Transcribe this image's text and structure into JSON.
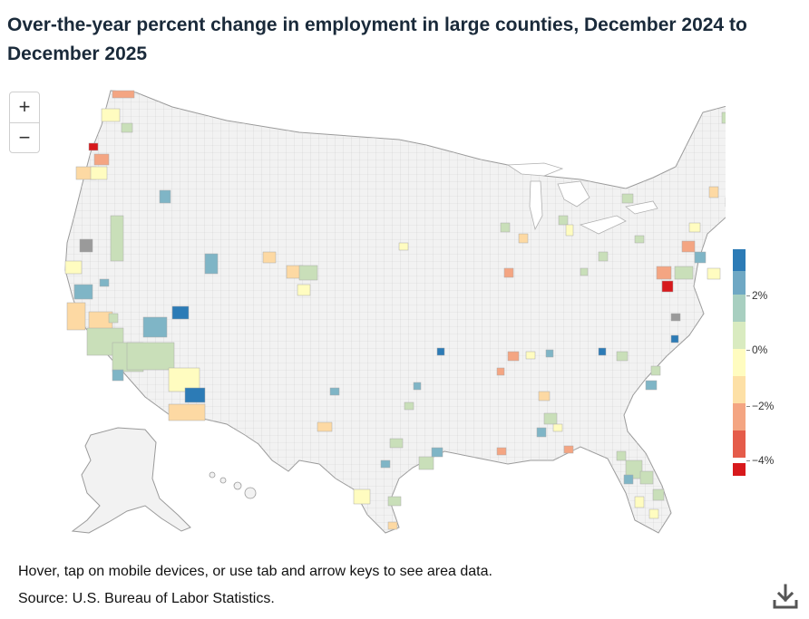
{
  "title": "Over-the-year percent change in employment in large counties, December 2024 to December 2025",
  "zoom": {
    "in_label": "+",
    "out_label": "−"
  },
  "legend": {
    "labels": [
      "2%",
      "0%",
      "−2%",
      "−4%"
    ],
    "colors": {
      "strong_positive": "#2c7bb6",
      "positive": "#7fb5c6",
      "slight_positive": "#c9dfb9",
      "neutral": "#fffcc0",
      "slight_negative": "#fdd9a3",
      "negative": "#f4a582",
      "strong_negative": "#d7191c",
      "no_data": "#f2f2f2",
      "suppressed": "#9a9a9a"
    }
  },
  "note": "Hover, tap on mobile devices, or use tab and arrow keys to see area data.",
  "source": "Source: U.S. Bureau of Labor Statistics.",
  "icons": {
    "download": "download-icon",
    "zoom_in": "plus-icon",
    "zoom_out": "minus-icon"
  }
}
